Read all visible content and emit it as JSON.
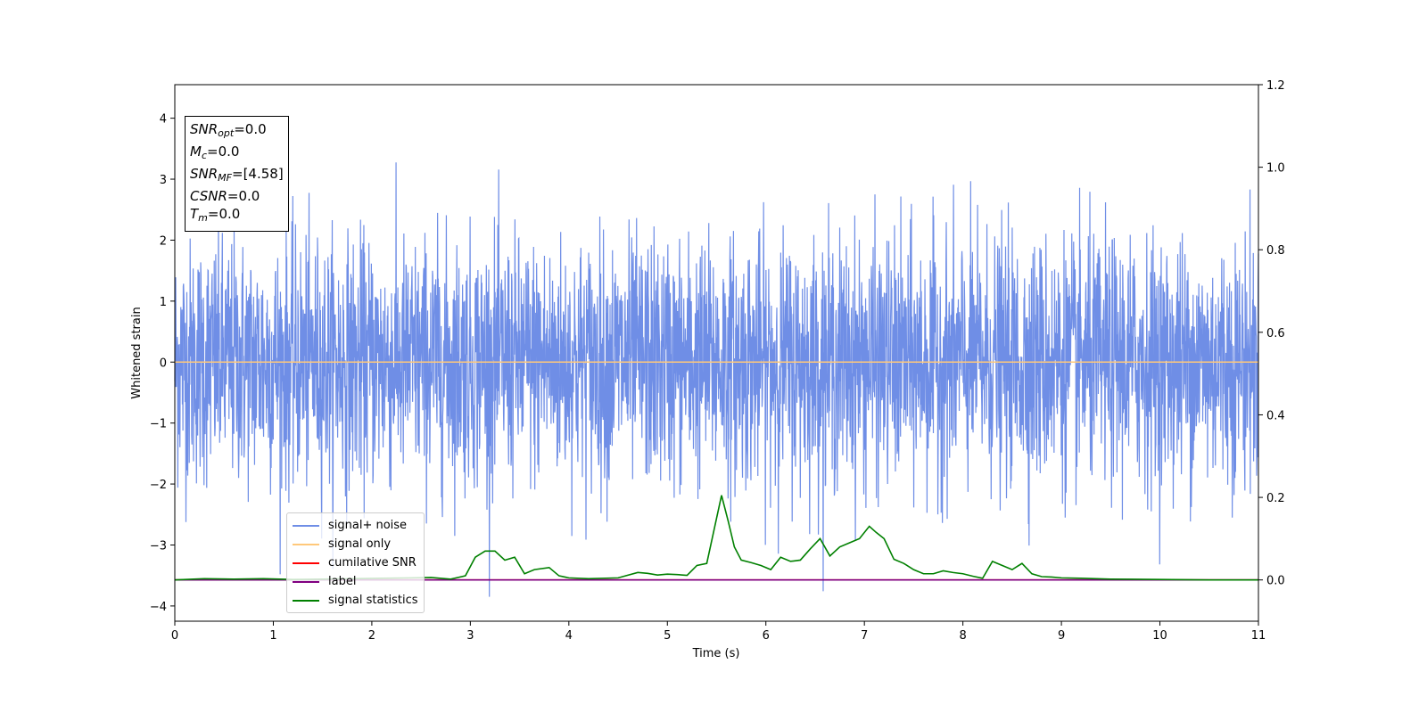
{
  "chart_data": {
    "type": "line",
    "xlabel": "Time (s)",
    "ylabel": "Whitened strain",
    "xlim": [
      0,
      11
    ],
    "ylim": [
      -4.25,
      4.55
    ],
    "y2lim": [
      -0.1,
      1.2
    ],
    "xticks": [
      "0",
      "1",
      "2",
      "3",
      "4",
      "5",
      "6",
      "7",
      "8",
      "9",
      "10",
      "11"
    ],
    "yticks": [
      "−4",
      "−3",
      "−2",
      "−1",
      "0",
      "1",
      "2",
      "3",
      "4"
    ],
    "y2ticks": [
      "0.0",
      "0.2",
      "0.4",
      "0.6",
      "0.8",
      "1.0",
      "1.2"
    ],
    "grid": false,
    "legend_position": "lower-left",
    "series": [
      {
        "name": "signal+ noise",
        "color": "#6f8ee6",
        "axis": "left",
        "kind": "noise",
        "amplitude_sigma": 1.0
      },
      {
        "name": "signal only",
        "color": "#ffc87a",
        "axis": "left",
        "x": [
          0,
          11
        ],
        "y": [
          0,
          0
        ]
      },
      {
        "name": "cumilative SNR",
        "color": "#ff0000",
        "axis": "right",
        "x": [
          0,
          11
        ],
        "y": [
          0,
          0
        ]
      },
      {
        "name": "label",
        "color": "#800080",
        "axis": "right",
        "x": [
          0,
          11
        ],
        "y": [
          0,
          0
        ]
      },
      {
        "name": "signal statistics",
        "color": "#008000",
        "axis": "right",
        "x": [
          0,
          0.3,
          0.6,
          0.9,
          1.2,
          1.5,
          1.8,
          2.1,
          2.4,
          2.6,
          2.8,
          2.95,
          3.05,
          3.15,
          3.25,
          3.35,
          3.45,
          3.55,
          3.65,
          3.8,
          3.9,
          4.0,
          4.2,
          4.5,
          4.7,
          4.8,
          4.9,
          5.0,
          5.1,
          5.2,
          5.3,
          5.4,
          5.5,
          5.55,
          5.62,
          5.68,
          5.75,
          5.85,
          5.95,
          6.05,
          6.15,
          6.25,
          6.35,
          6.45,
          6.55,
          6.65,
          6.75,
          6.85,
          6.95,
          7.05,
          7.12,
          7.2,
          7.3,
          7.4,
          7.5,
          7.6,
          7.7,
          7.8,
          7.9,
          8.0,
          8.1,
          8.2,
          8.3,
          8.4,
          8.5,
          8.6,
          8.7,
          8.8,
          8.9,
          9.0,
          9.2,
          9.5,
          10.0,
          10.5,
          11.0
        ],
        "y": [
          0.0,
          0.003,
          0.002,
          0.003,
          0.001,
          0.002,
          0.003,
          0.004,
          0.005,
          0.006,
          0.002,
          0.01,
          0.055,
          0.07,
          0.07,
          0.048,
          0.055,
          0.015,
          0.025,
          0.03,
          0.01,
          0.005,
          0.003,
          0.005,
          0.018,
          0.016,
          0.012,
          0.014,
          0.013,
          0.011,
          0.035,
          0.04,
          0.15,
          0.205,
          0.14,
          0.08,
          0.048,
          0.042,
          0.035,
          0.025,
          0.055,
          0.045,
          0.048,
          0.075,
          0.1,
          0.058,
          0.08,
          0.09,
          0.1,
          0.13,
          0.115,
          0.1,
          0.05,
          0.04,
          0.025,
          0.015,
          0.015,
          0.022,
          0.018,
          0.015,
          0.009,
          0.004,
          0.045,
          0.035,
          0.025,
          0.04,
          0.015,
          0.008,
          0.007,
          0.005,
          0.004,
          0.002,
          0.001,
          0.0,
          0.0
        ]
      }
    ],
    "annotation": {
      "snr_opt_label": "SNR",
      "snr_opt_sub": "opt",
      "snr_opt_value": "=0.0",
      "mc_label": "M",
      "mc_sub": "c",
      "mc_value": "=0.0",
      "snr_mf_label": "SNR",
      "snr_mf_sub": "MF",
      "snr_mf_value": "=[4.58]",
      "csnr_label": "CSNR",
      "csnr_value": "=0.0",
      "tm_label": "T",
      "tm_sub": "m",
      "tm_value": "=0.0"
    }
  }
}
